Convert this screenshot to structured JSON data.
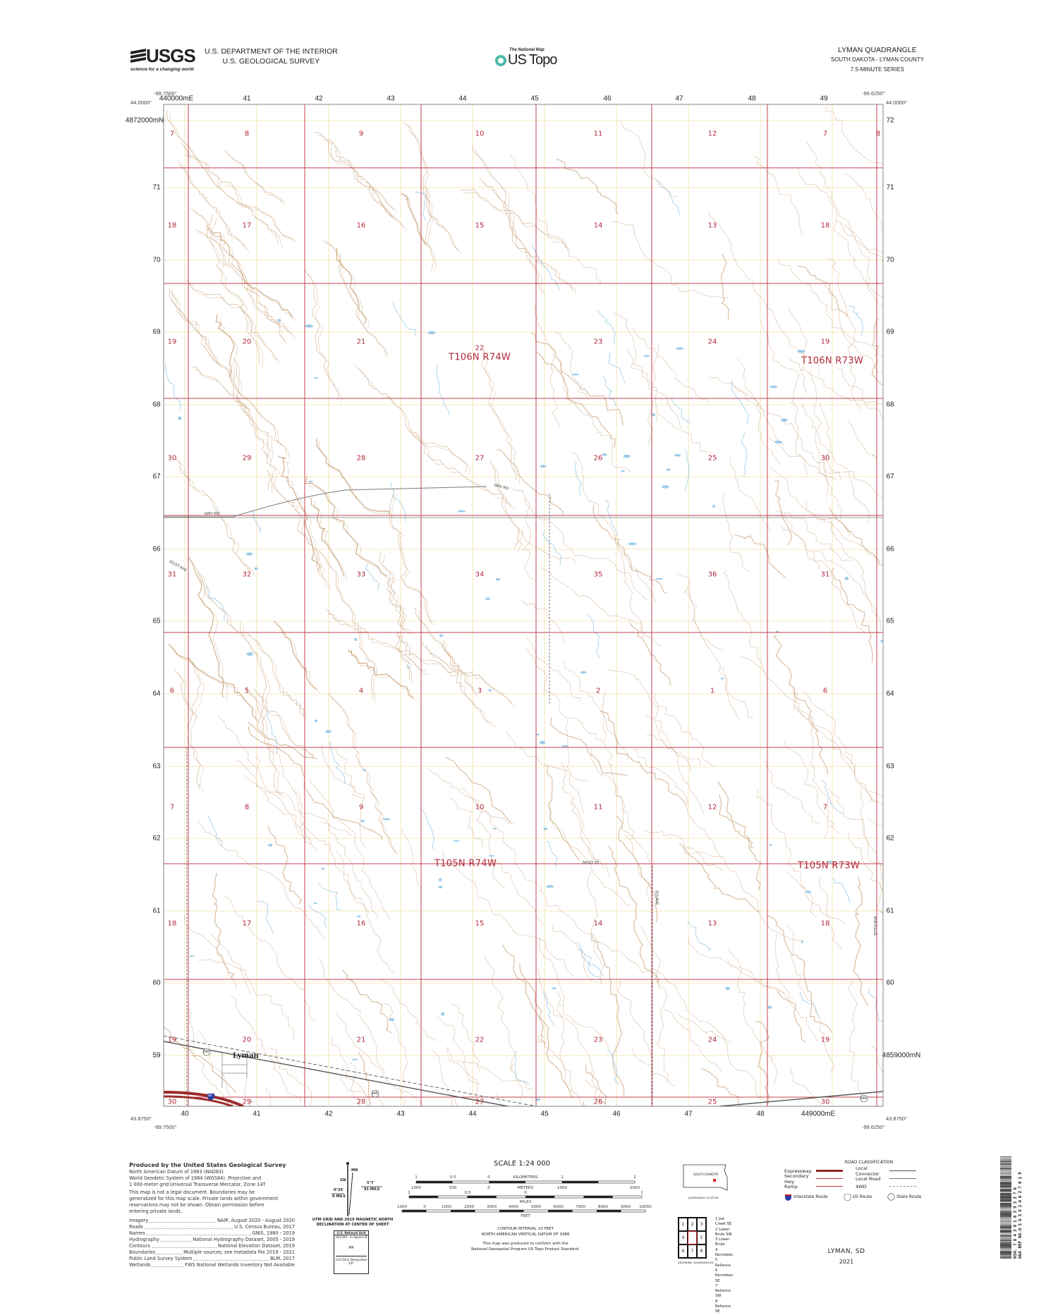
{
  "header": {
    "agency_logo": "USGS",
    "agency_tagline": "science for a changing world",
    "dept_line1": "U.S. DEPARTMENT OF THE INTERIOR",
    "dept_line2": "U.S. GEOLOGICAL SURVEY",
    "product_small": "The National Map",
    "product_name": "US Topo",
    "quad_title": "LYMAN QUADRANGLE",
    "quad_state_county": "SOUTH DAKOTA - LYMAN COUNTY",
    "quad_series": "7.5-MINUTE SERIES"
  },
  "map": {
    "corners": {
      "nw_lon": "-99.7500°",
      "nw_lat": "44.0000°",
      "ne_lon": "-99.6250°",
      "ne_lat": "44.0000°",
      "sw_lon": "-99.7500°",
      "sw_lat": "43.8750°",
      "se_lon": "-99.6250°",
      "se_lat": "43.8750°"
    },
    "easting_labels_top": [
      "440000mE",
      "41",
      "42",
      "43",
      "44",
      "45",
      "46",
      "47",
      "48",
      "49"
    ],
    "easting_labels_bottom": [
      "40",
      "41",
      "42",
      "43",
      "44",
      "45",
      "46",
      "47",
      "48",
      "449000mE"
    ],
    "northing_labels_left": [
      "4872000mN",
      "71",
      "70",
      "69",
      "68",
      "67",
      "66",
      "65",
      "64",
      "63",
      "62",
      "61",
      "60",
      "59"
    ],
    "northing_labels_right": [
      "72",
      "71",
      "70",
      "69",
      "68",
      "67",
      "66",
      "65",
      "64",
      "63",
      "62",
      "61",
      "60",
      "4859000mN"
    ],
    "sections": [
      [
        "7",
        "8",
        "9",
        "10",
        "11",
        "12",
        "7",
        "8"
      ],
      [
        "18",
        "17",
        "16",
        "15",
        "14",
        "13",
        "18"
      ],
      [
        "19",
        "20",
        "21",
        "22",
        "23",
        "24",
        "19"
      ],
      [
        "30",
        "29",
        "28",
        "27",
        "26",
        "25",
        "30"
      ],
      [
        "31",
        "32",
        "33",
        "34",
        "35",
        "36",
        "31"
      ],
      [
        "6",
        "5",
        "4",
        "3",
        "2",
        "1",
        "6"
      ],
      [
        "7",
        "8",
        "9",
        "10",
        "11",
        "12",
        "7"
      ],
      [
        "18",
        "17",
        "16",
        "15",
        "14",
        "13",
        "18"
      ],
      [
        "19",
        "20",
        "21",
        "22",
        "23",
        "24",
        "19"
      ],
      [
        "30",
        "29",
        "28",
        "27",
        "26",
        "25",
        "30"
      ]
    ],
    "townships": [
      "T106N R74W",
      "T106N R73W",
      "T105N R74W",
      "T105N R73W"
    ],
    "place_name": "Lyman",
    "road_labels": [
      "GRV RD",
      "GRV RD",
      "241ST ST",
      "323 AVE",
      "327TH AVE",
      "321ST AVE"
    ],
    "route_shields": {
      "interstate": "90",
      "state": "248"
    },
    "colors": {
      "section_line": "#c0404f",
      "contour": "#c9a27a",
      "water": "#9ccbe8",
      "grid": "#f1dfa6",
      "road": "#7a7a7a",
      "expressway": "#9c2b2b"
    }
  },
  "footer": {
    "produced_by": "Produced by the United States Geological Survey",
    "datum_lines": [
      "North American Datum of 1983 (NAD83)",
      "World Geodetic System of 1984 (WGS84).  Projection and",
      "1 000-meter grid:Universal Transverse Mercator, Zone 14T"
    ],
    "disclaimer": [
      "This map is not a legal document. Boundaries may be",
      "generalized for this map scale. Private lands within government",
      "reservations may not be shown. Obtain permission before",
      "entering private lands."
    ],
    "credits": [
      {
        "item": "Imagery",
        "source": "NAIP, August 2020 - August 2020"
      },
      {
        "item": "Roads",
        "source": "U.S. Census Bureau, 2017"
      },
      {
        "item": "Names",
        "source": "GNIS, 1980 - 2019"
      },
      {
        "item": "Hydrography",
        "source": "National Hydrography Dataset, 2005 - 2019"
      },
      {
        "item": "Contours",
        "source": "National Elevation Dataset, 2019"
      },
      {
        "item": "Boundaries",
        "source": "Multiple sources; see metadata file 2019 - 2021"
      },
      {
        "item": "Public Land Survey System",
        "source": "BLM, 2017"
      },
      {
        "item": "Wetlands",
        "source": "FWS National Wetlands Inventory Not Available"
      }
    ],
    "declination": {
      "mn": "MN",
      "gn": "GN",
      "east_angle": "5°7´",
      "east_mils": "91 MILS",
      "west_angle": "0°29´",
      "west_mils": "9 MILS",
      "caption1": "UTM GRID AND 2019 MAGNETIC NORTH",
      "caption2": "DECLINATION AT CENTER OF SHEET"
    },
    "usng": {
      "title": "U.S. National Grid",
      "sub": "100,000 - m Square ID",
      "id": "MP",
      "gzd_label": "Grid Zone Designation",
      "gzd": "14T"
    },
    "scale": {
      "title": "SCALE 1:24 000",
      "km_ticks": [
        "1",
        "0.5",
        "0",
        "1",
        "2"
      ],
      "km_label": "KILOMETERS",
      "m_ticks": [
        "1000",
        "500",
        "0",
        "1000",
        "2000"
      ],
      "m_label": "METERS",
      "mi_ticks": [
        "1",
        "0.5",
        "0",
        "1"
      ],
      "mi_label": "MILES",
      "ft_ticks": [
        "1000",
        "0",
        "1000",
        "2000",
        "3000",
        "4000",
        "5000",
        "6000",
        "7000",
        "8000",
        "9000",
        "10000"
      ],
      "ft_label": "FEET",
      "contour_interval": "CONTOUR INTERVAL 10 FEET",
      "vertical_datum": "NORTH AMERICAN VERTICAL DATUM OF 1988",
      "standard1": "This map was produced to conform with the",
      "standard2": "National Geospatial Program US Topo Product Standard."
    },
    "location": {
      "state": "SOUTH DAKOTA",
      "caption": "QUADRANGLE LOCATION"
    },
    "adjoining": {
      "cells": [
        "1",
        "2",
        "3",
        "4",
        "",
        "5",
        "6",
        "7",
        "8"
      ],
      "names": [
        "1 Joe Creek SE",
        "2 Lower Brule SW",
        "3 Lower Brule",
        "4 Kennebec",
        "5 Reliance",
        "6 Kennebec SE",
        "7 Reliance SW",
        "8 Reliance SE"
      ],
      "caption": "ADJOINING QUADRANGLES"
    },
    "road_classification": {
      "title": "ROAD CLASSIFICATION",
      "items": [
        "Expressway",
        "Secondary Hwy",
        "Ramp",
        "Local Connector",
        "Local Road",
        "4WD"
      ],
      "routes": [
        "Interstate Route",
        "US Route",
        "State Route"
      ]
    },
    "sheet_name": "LYMAN, SD",
    "year": "2021",
    "barcode": {
      "nsn_label": "NSN.",
      "nsn": "7643016393376",
      "nga_label": "NGA REF NO.",
      "nga": "USGSX24K27019"
    }
  }
}
